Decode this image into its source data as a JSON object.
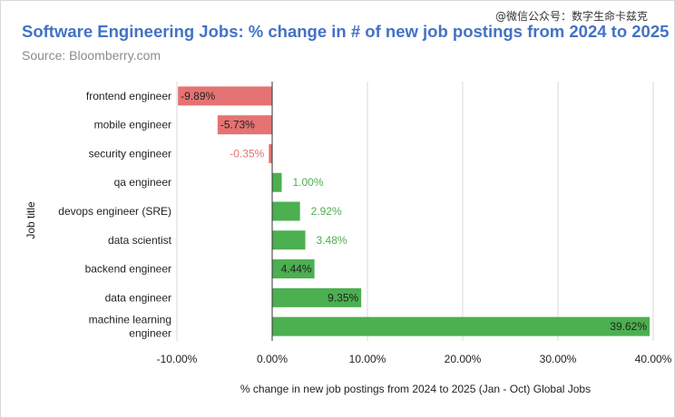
{
  "watermark": "@微信公众号：数字生命卡兹克",
  "chart_data": {
    "type": "bar",
    "orientation": "horizontal",
    "title": "Software Engineering Jobs: % change in # of new job postings from 2024 to 2025",
    "subtitle": "Source: Bloomberry.com",
    "xlabel": "% change in new job postings from 2024 to 2025 (Jan - Oct) Global Jobs",
    "ylabel": "Job title",
    "xlim": [
      -10,
      40
    ],
    "xticks": [
      "-10.00%",
      "0.00%",
      "10.00%",
      "20.00%",
      "30.00%",
      "40.00%"
    ],
    "grid": true,
    "categories": [
      [
        "frontend engineer"
      ],
      [
        "mobile engineer"
      ],
      [
        "security engineer"
      ],
      [
        "qa engineer"
      ],
      [
        "devops engineer (SRE)"
      ],
      [
        "data scientist"
      ],
      [
        "backend engineer"
      ],
      [
        "data engineer"
      ],
      [
        "machine learning",
        "engineer"
      ]
    ],
    "values": [
      -9.89,
      -5.73,
      -0.35,
      1.0,
      2.92,
      3.48,
      4.44,
      9.35,
      39.62
    ],
    "data_labels": [
      "-9.89%",
      "-5.73%",
      "-0.35%",
      "1.00%",
      "2.92%",
      "3.48%",
      "4.44%",
      "9.35%",
      "39.62%"
    ],
    "colors": {
      "negative": "#e57373",
      "positive": "#4caf50",
      "title": "#4472c4"
    }
  }
}
